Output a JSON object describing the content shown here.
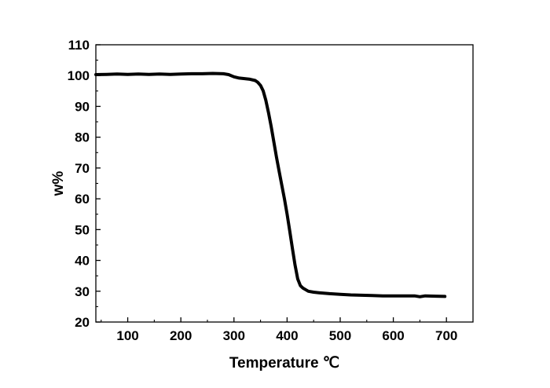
{
  "chart_data": {
    "type": "line",
    "title": "",
    "xlabel": "Temperature ℃",
    "ylabel": "w%",
    "xlim": [
      40,
      750
    ],
    "ylim": [
      20,
      110
    ],
    "xticks": [
      100,
      200,
      300,
      400,
      500,
      600,
      700
    ],
    "yticks": [
      20,
      30,
      40,
      50,
      60,
      70,
      80,
      90,
      100,
      110
    ],
    "grid": false,
    "legend": "none",
    "line_color": "#000000",
    "series": [
      {
        "x": [
          40,
          60,
          80,
          100,
          120,
          140,
          160,
          180,
          200,
          220,
          240,
          260,
          280,
          290,
          300,
          310,
          320,
          330,
          340,
          345,
          350,
          355,
          360,
          365,
          370,
          375,
          380,
          385,
          390,
          395,
          400,
          405,
          410,
          415,
          420,
          425,
          430,
          435,
          440,
          450,
          460,
          480,
          500,
          520,
          540,
          560,
          580,
          600,
          620,
          640,
          650,
          660,
          680,
          697
        ],
        "y": [
          100.3,
          100.4,
          100.5,
          100.4,
          100.5,
          100.4,
          100.5,
          100.4,
          100.5,
          100.6,
          100.6,
          100.7,
          100.6,
          100.3,
          99.6,
          99.2,
          99.0,
          98.8,
          98.4,
          97.8,
          96.8,
          95.0,
          92.0,
          88.0,
          83.5,
          78.5,
          73.5,
          69.0,
          64.5,
          60.0,
          55.0,
          49.5,
          44.0,
          38.5,
          34.0,
          31.8,
          31.0,
          30.5,
          30.0,
          29.7,
          29.5,
          29.2,
          29.0,
          28.8,
          28.7,
          28.6,
          28.5,
          28.5,
          28.5,
          28.5,
          28.2,
          28.5,
          28.4,
          28.3
        ]
      }
    ]
  }
}
